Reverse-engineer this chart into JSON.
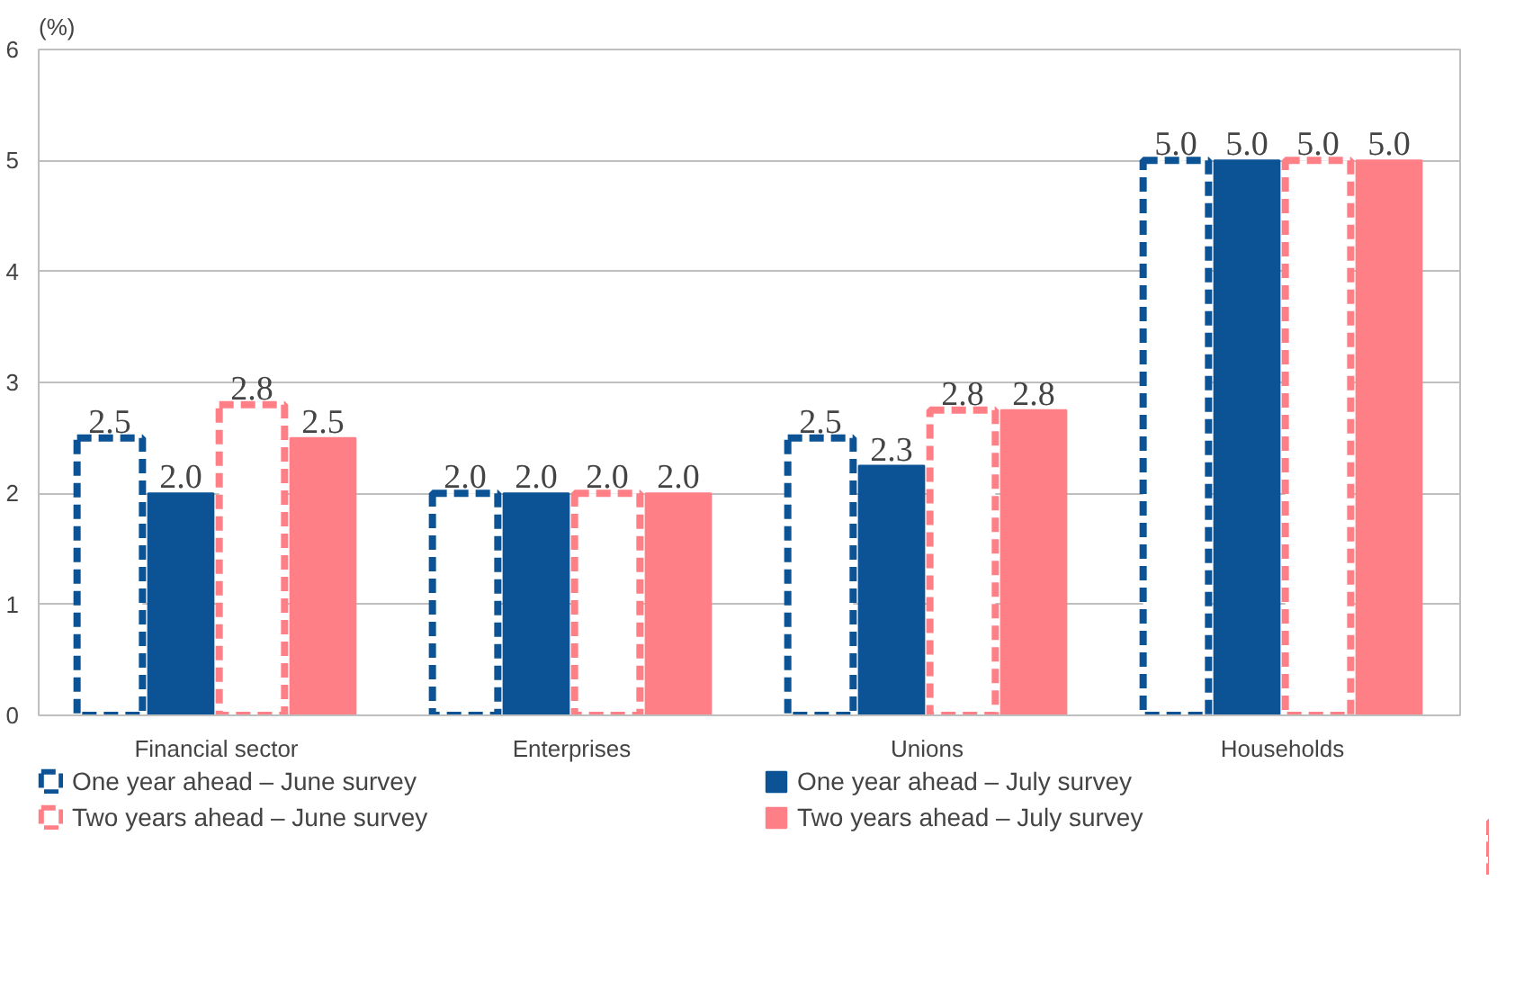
{
  "chart_data": {
    "type": "bar",
    "ylabel": "(%)",
    "categories": [
      "Financial sector",
      "Enterprises",
      "Unions",
      "Households"
    ],
    "series": [
      {
        "name": "One year ahead – June survey",
        "color": "#0b5394",
        "line_style": "dashed",
        "values": [
          2.5,
          2.0,
          2.5,
          5.0
        ],
        "value_labels": [
          "2.5",
          "2.0",
          "2.5",
          "5.0"
        ]
      },
      {
        "name": "One year ahead – July survey",
        "color": "#0b5394",
        "values": [
          2.0,
          2.0,
          2.25,
          5.0
        ],
        "value_labels": [
          "2.0",
          "2.0",
          "2.3",
          "5.0"
        ]
      },
      {
        "name": "Two years ahead – June survey",
        "color": "#ff7f86",
        "line_style": "dashed",
        "values": [
          2.8,
          2.0,
          2.75,
          5.0
        ],
        "value_labels": [
          "2.8",
          "2.0",
          "2.8",
          "5.0"
        ]
      },
      {
        "name": "Two years ahead – July survey",
        "color": "#ff7f86",
        "values": [
          2.5,
          2.0,
          2.75,
          5.0
        ],
        "value_labels": [
          "2.5",
          "2.0",
          "2.8",
          "5.0"
        ]
      }
    ],
    "ylim": [
      0,
      6
    ],
    "yticks": [
      0,
      1,
      2,
      3,
      4,
      5,
      6
    ],
    "grid": "y",
    "legend": "bottom"
  }
}
